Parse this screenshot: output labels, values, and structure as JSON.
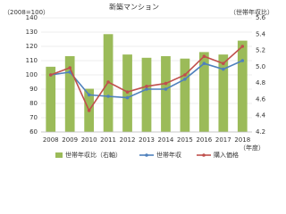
{
  "chart_data": {
    "type": "bar_line",
    "title": "新築マンション",
    "y_label": "（2008=100）",
    "y2_label": "（世帯年収比）",
    "x_label": "（年度）",
    "categories": [
      "2008",
      "2009",
      "2010",
      "2011",
      "2012",
      "2013",
      "2014",
      "2015",
      "2016",
      "2017",
      "2018"
    ],
    "ylim": [
      60,
      140
    ],
    "yticks": [
      60,
      70,
      80,
      90,
      100,
      110,
      120,
      130,
      140
    ],
    "y2lim": [
      4.2,
      5.6
    ],
    "y2ticks": [
      4.2,
      4.4,
      4.6,
      4.8,
      {
        "value": 5,
        "label": "5.0"
      },
      5.2,
      5.4,
      5.6
    ],
    "grid": true,
    "series": [
      {
        "name": "世帯年収比（右軸）",
        "type": "bar",
        "axis": "y2",
        "color": "#9bbb59",
        "values": [
          5.0,
          5.13,
          4.73,
          5.4,
          5.15,
          5.11,
          5.13,
          5.1,
          5.18,
          5.15,
          5.32
        ]
      },
      {
        "name": "世帯年収",
        "type": "line",
        "color": "#4f81bd",
        "values": [
          100,
          102,
          86,
          85,
          84,
          90,
          90,
          97,
          108,
          104,
          110
        ]
      },
      {
        "name": "購入価格",
        "type": "line",
        "color": "#c0504d",
        "values": [
          100,
          105,
          75,
          95,
          88,
          92,
          94,
          100,
          113,
          108,
          120
        ]
      }
    ]
  }
}
